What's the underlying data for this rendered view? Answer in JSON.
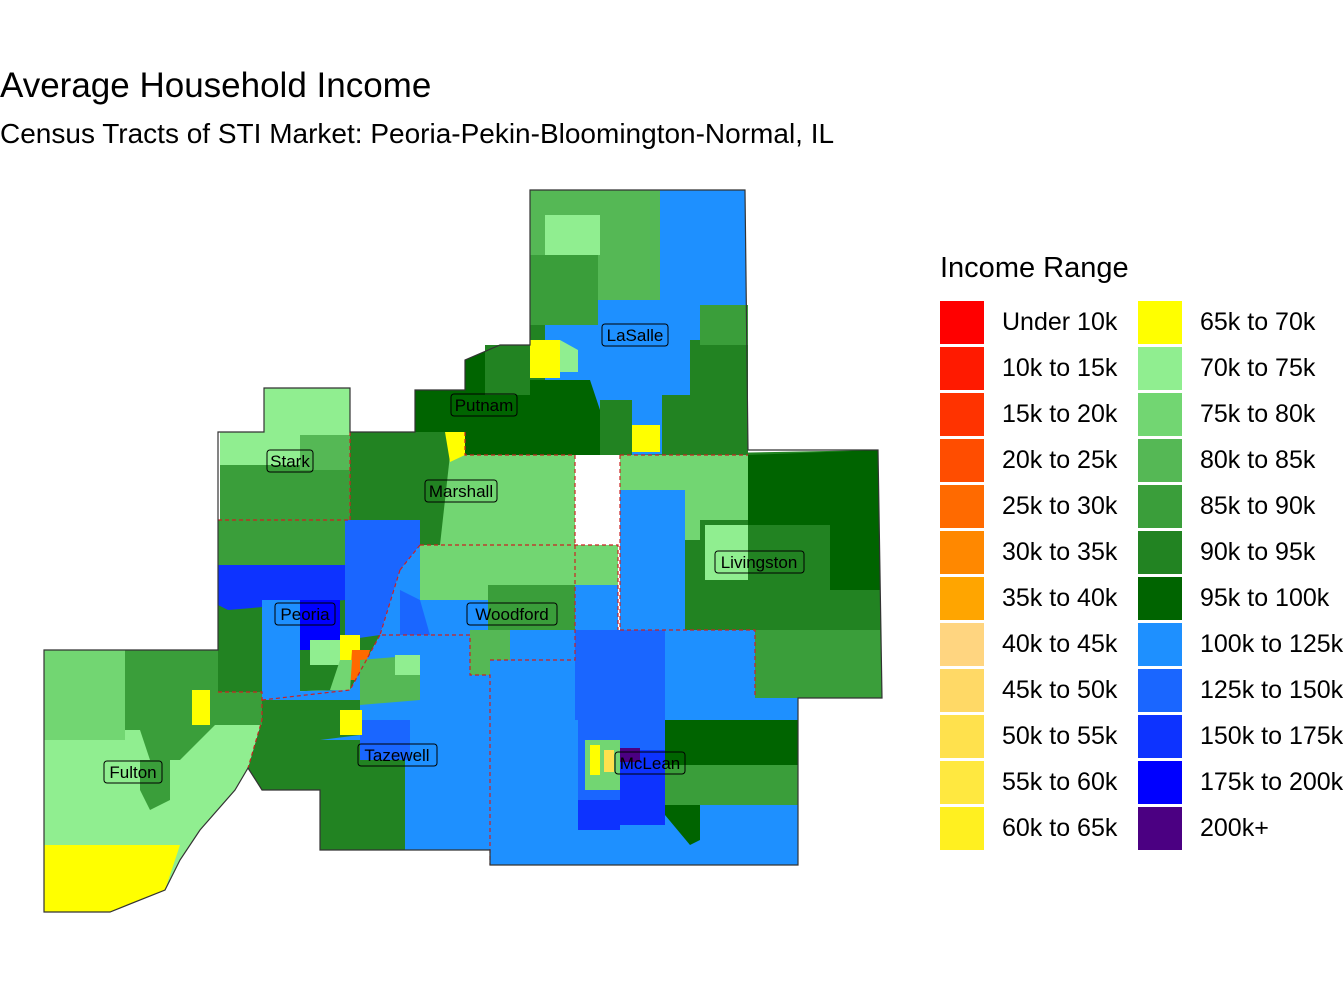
{
  "title": "Average Household Income",
  "subtitle": "Census Tracts of STI Market: Peoria-Pekin-Bloomington-Normal, IL",
  "legend": {
    "title": "Income Range",
    "items": [
      {
        "label": "Under 10k",
        "color": "#ff0000"
      },
      {
        "label": "10k to 15k",
        "color": "#ff1a00"
      },
      {
        "label": "15k to 20k",
        "color": "#ff3300"
      },
      {
        "label": "20k to 25k",
        "color": "#ff4d00"
      },
      {
        "label": "25k to 30k",
        "color": "#ff6a00"
      },
      {
        "label": "30k to 35k",
        "color": "#ff8800"
      },
      {
        "label": "35k to 40k",
        "color": "#ffa500"
      },
      {
        "label": "40k to 45k",
        "color": "#ffd580"
      },
      {
        "label": "45k to 50k",
        "color": "#ffd966"
      },
      {
        "label": "50k to 55k",
        "color": "#ffe14d"
      },
      {
        "label": "55k to 60k",
        "color": "#ffe840"
      },
      {
        "label": "60k to 65k",
        "color": "#fff020"
      },
      {
        "label": "65k to 70k",
        "color": "#ffff00"
      },
      {
        "label": "70k to 75k",
        "color": "#90ee90"
      },
      {
        "label": "75k to 80k",
        "color": "#72d672"
      },
      {
        "label": "80k to 85k",
        "color": "#55b855"
      },
      {
        "label": "85k to 90k",
        "color": "#3a9e3a"
      },
      {
        "label": "90k to 95k",
        "color": "#228322"
      },
      {
        "label": "95k to 100k",
        "color": "#006400"
      },
      {
        "label": "100k to 125k",
        "color": "#1e90ff"
      },
      {
        "label": "125k to 150k",
        "color": "#1a66ff"
      },
      {
        "label": "150k to 175k",
        "color": "#0d33ff"
      },
      {
        "label": "175k to 200k",
        "color": "#0000ff"
      },
      {
        "label": "200k+",
        "color": "#4b0082"
      }
    ]
  },
  "counties": [
    {
      "name": "LaSalle"
    },
    {
      "name": "Putnam"
    },
    {
      "name": "Stark"
    },
    {
      "name": "Marshall"
    },
    {
      "name": "Livingston"
    },
    {
      "name": "Peoria"
    },
    {
      "name": "Woodford"
    },
    {
      "name": "Tazewell"
    },
    {
      "name": "McLean"
    },
    {
      "name": "Fulton"
    }
  ],
  "colors": {
    "county_border": "#cc2222",
    "outline": "#333333",
    "label_box_border": "#000000"
  }
}
